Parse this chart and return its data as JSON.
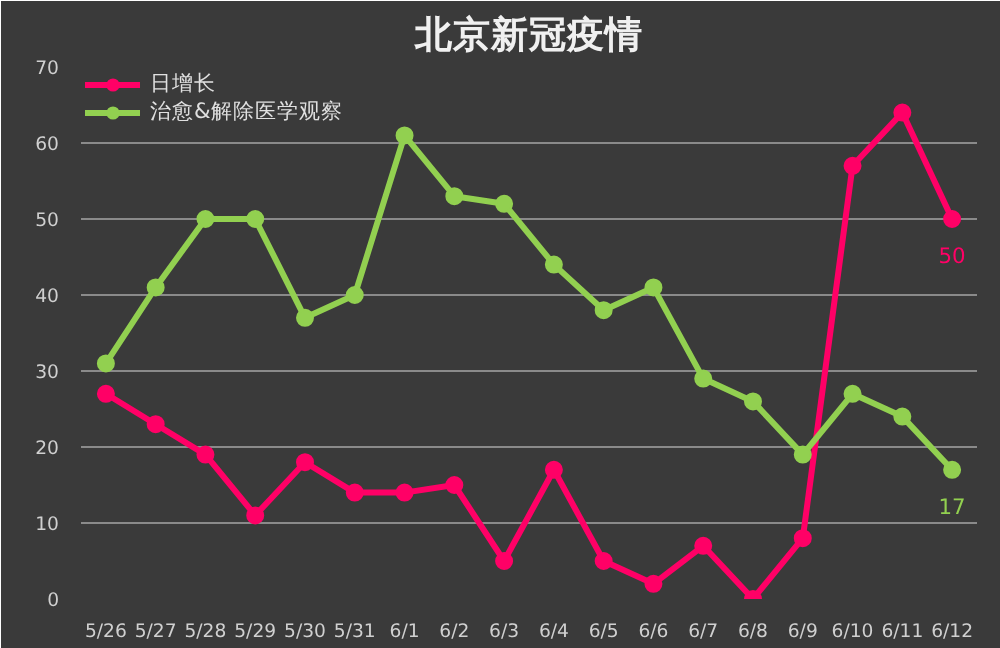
{
  "chart_data": {
    "type": "line",
    "title": "北京新冠疫情",
    "categories": [
      "5/26",
      "5/27",
      "5/28",
      "5/29",
      "5/30",
      "5/31",
      "6/1",
      "6/2",
      "6/3",
      "6/4",
      "6/5",
      "6/6",
      "6/7",
      "6/8",
      "6/9",
      "6/10",
      "6/11",
      "6/12"
    ],
    "series": [
      {
        "name": "日增长",
        "color": "#ff0066",
        "values": [
          27,
          23,
          19,
          11,
          18,
          14,
          14,
          15,
          5,
          17,
          5,
          2,
          7,
          0,
          8,
          57,
          64,
          50
        ],
        "value_labels": [
          null,
          null,
          null,
          null,
          null,
          null,
          null,
          null,
          null,
          null,
          null,
          null,
          null,
          null,
          null,
          null,
          null,
          "50"
        ]
      },
      {
        "name": "治愈&解除医学观察",
        "color": "#92d050",
        "values": [
          31,
          41,
          50,
          50,
          37,
          40,
          61,
          53,
          52,
          44,
          38,
          41,
          29,
          26,
          19,
          27,
          24,
          17
        ],
        "value_labels": [
          null,
          null,
          null,
          null,
          null,
          null,
          null,
          null,
          null,
          null,
          null,
          null,
          null,
          null,
          null,
          null,
          null,
          "17"
        ]
      }
    ],
    "ylim": [
      0,
      70
    ],
    "yticks": [
      0,
      10,
      20,
      30,
      40,
      50,
      60,
      70
    ],
    "grid": "y",
    "legend": "top left",
    "marker": "circle"
  }
}
